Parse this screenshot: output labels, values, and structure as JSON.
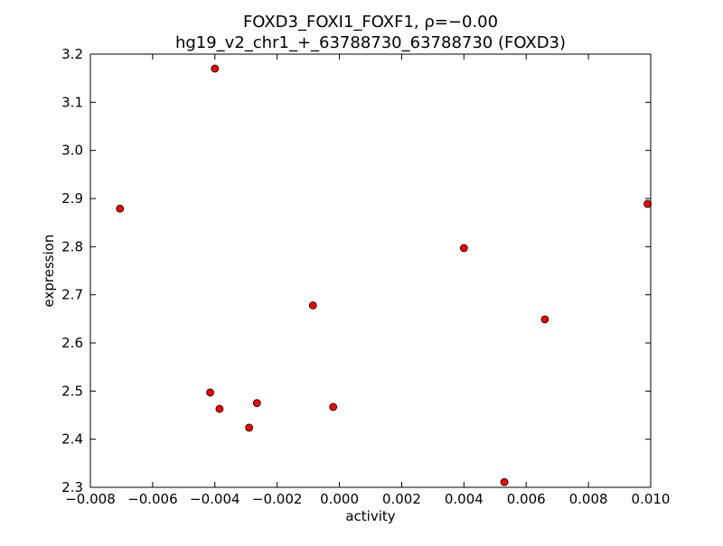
{
  "chart_data": {
    "type": "scatter",
    "title_line1": "FOXD3_FOXI1_FOXF1, ρ=−0.00",
    "title_line2": "hg19_v2_chr1_+_63788730_63788730 (FOXD3)",
    "xlabel": "activity",
    "ylabel": "expression",
    "xlim": [
      -0.008,
      0.01
    ],
    "ylim": [
      2.3,
      3.2
    ],
    "xticks": [
      {
        "value": -0.008,
        "label": "−0.008"
      },
      {
        "value": -0.006,
        "label": "−0.006"
      },
      {
        "value": -0.004,
        "label": "−0.004"
      },
      {
        "value": -0.002,
        "label": "−0.002"
      },
      {
        "value": 0.0,
        "label": "0.000"
      },
      {
        "value": 0.002,
        "label": "0.002"
      },
      {
        "value": 0.004,
        "label": "0.004"
      },
      {
        "value": 0.006,
        "label": "0.006"
      },
      {
        "value": 0.008,
        "label": "0.008"
      },
      {
        "value": 0.01,
        "label": "0.010"
      }
    ],
    "yticks": [
      {
        "value": 2.3,
        "label": "2.3"
      },
      {
        "value": 2.4,
        "label": "2.4"
      },
      {
        "value": 2.5,
        "label": "2.5"
      },
      {
        "value": 2.6,
        "label": "2.6"
      },
      {
        "value": 2.7,
        "label": "2.7"
      },
      {
        "value": 2.8,
        "label": "2.8"
      },
      {
        "value": 2.9,
        "label": "2.9"
      },
      {
        "value": 3.0,
        "label": "3.0"
      },
      {
        "value": 3.1,
        "label": "3.1"
      },
      {
        "value": 3.2,
        "label": "3.2"
      }
    ],
    "grid": false,
    "marker_color": "#ff0000",
    "marker_edge_color": "#000000",
    "points": [
      {
        "x": -0.00705,
        "y": 2.879
      },
      {
        "x": -0.004,
        "y": 3.17
      },
      {
        "x": -0.00415,
        "y": 2.497
      },
      {
        "x": -0.00385,
        "y": 2.463
      },
      {
        "x": -0.0029,
        "y": 2.424
      },
      {
        "x": -0.00265,
        "y": 2.475
      },
      {
        "x": -0.00085,
        "y": 2.678
      },
      {
        "x": -0.0002,
        "y": 2.467
      },
      {
        "x": 0.004,
        "y": 2.797
      },
      {
        "x": 0.0053,
        "y": 2.311
      },
      {
        "x": 0.0066,
        "y": 2.649
      },
      {
        "x": 0.0099,
        "y": 2.889
      }
    ]
  }
}
